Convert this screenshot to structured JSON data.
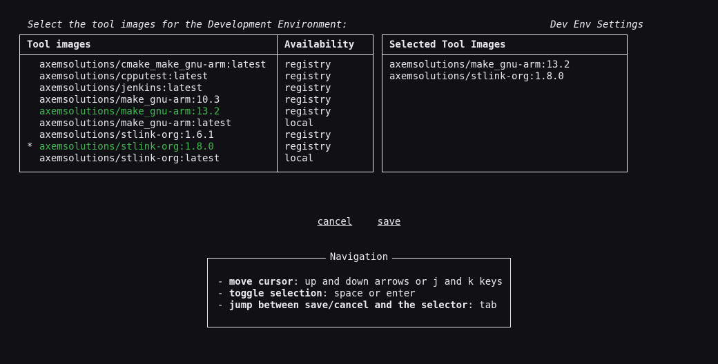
{
  "header": {
    "prompt": "Select the tool images for the Development Environment:",
    "title": "Dev Env Settings"
  },
  "columns": {
    "tools": "Tool images",
    "availability": "Availability",
    "selected": "Selected Tool Images"
  },
  "tool_images": [
    {
      "marker": " ",
      "name": "axemsolutions/cmake_make_gnu-arm:latest",
      "availability": "registry",
      "selected": false
    },
    {
      "marker": " ",
      "name": "axemsolutions/cpputest:latest",
      "availability": "registry",
      "selected": false
    },
    {
      "marker": " ",
      "name": "axemsolutions/jenkins:latest",
      "availability": "registry",
      "selected": false
    },
    {
      "marker": " ",
      "name": "axemsolutions/make_gnu-arm:10.3",
      "availability": "registry",
      "selected": false
    },
    {
      "marker": " ",
      "name": "axemsolutions/make_gnu-arm:13.2",
      "availability": "registry",
      "selected": true
    },
    {
      "marker": " ",
      "name": "axemsolutions/make_gnu-arm:latest",
      "availability": "local",
      "selected": false
    },
    {
      "marker": " ",
      "name": "axemsolutions/stlink-org:1.6.1",
      "availability": "registry",
      "selected": false
    },
    {
      "marker": "*",
      "name": "axemsolutions/stlink-org:1.8.0",
      "availability": "registry",
      "selected": true
    },
    {
      "marker": " ",
      "name": "axemsolutions/stlink-org:latest",
      "availability": "local",
      "selected": false
    }
  ],
  "selected_images": [
    "axemsolutions/make_gnu-arm:13.2",
    "axemsolutions/stlink-org:1.8.0"
  ],
  "actions": {
    "cancel": "cancel",
    "save": "save"
  },
  "navigation": {
    "legend": "Navigation",
    "items": [
      {
        "key": "move cursor",
        "desc": ": up and down arrows or j and k keys"
      },
      {
        "key": "toggle selection",
        "desc": ": space or enter"
      },
      {
        "key": "jump between save/cancel and the selector",
        "desc": ": tab"
      }
    ]
  },
  "colors": {
    "background": "#111115",
    "foreground": "#e9e9ef",
    "highlight": "#3fb950"
  }
}
